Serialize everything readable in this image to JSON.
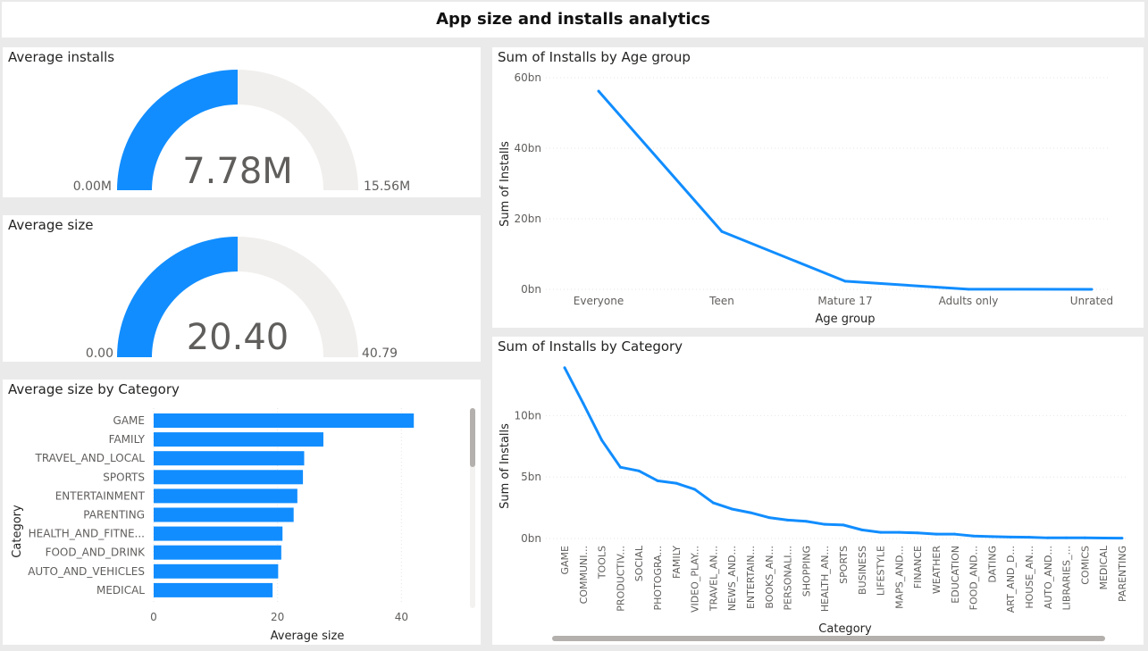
{
  "title": "App size and installs analytics",
  "colors": {
    "accent": "#118dff",
    "track": "#f1efed",
    "axis_text": "#605e5c",
    "title_text": "#252423"
  },
  "gauge_installs": {
    "title": "Average installs",
    "value": 7.78,
    "min": 0,
    "max": 15.56,
    "value_label": "7.78M",
    "min_label": "0.00M",
    "max_label": "15.56M"
  },
  "gauge_size": {
    "title": "Average size",
    "value": 20.4,
    "min": 0,
    "max": 40.79,
    "value_label": "20.40",
    "min_label": "0.00",
    "max_label": "40.79"
  },
  "chart_data": [
    {
      "type": "bar",
      "orientation": "horizontal",
      "title": "Average size by Category",
      "xlabel": "Average size",
      "ylabel": "Category",
      "xlim": [
        0,
        45
      ],
      "xticks": [
        0,
        20,
        40
      ],
      "categories": [
        "GAME",
        "FAMILY",
        "TRAVEL_AND_LOCAL",
        "SPORTS",
        "ENTERTAINMENT",
        "PARENTING",
        "HEALTH_AND_FITNE...",
        "FOOD_AND_DRINK",
        "AUTO_AND_VEHICLES",
        "MEDICAL"
      ],
      "values": [
        42.0,
        27.4,
        24.3,
        24.1,
        23.2,
        22.6,
        20.8,
        20.6,
        20.1,
        19.2
      ]
    },
    {
      "type": "line",
      "title": "Sum of Installs by Age group",
      "xlabel": "Age group",
      "ylabel": "Sum of Installs",
      "ylim": [
        0,
        60
      ],
      "yticks": [
        0,
        20,
        40,
        60
      ],
      "ytick_labels": [
        "0bn",
        "20bn",
        "40bn",
        "60bn"
      ],
      "categories": [
        "Everyone",
        "Teen",
        "Mature 17",
        "Adults only",
        "Unrated"
      ],
      "values": [
        56.2,
        16.4,
        2.3,
        0.03,
        0.0
      ]
    },
    {
      "type": "line",
      "title": "Sum of Installs by Category",
      "xlabel": "Category",
      "ylabel": "Sum of Installs",
      "ylim": [
        0,
        14
      ],
      "yticks": [
        0,
        5,
        10
      ],
      "ytick_labels": [
        "0bn",
        "5bn",
        "10bn"
      ],
      "categories": [
        "GAME",
        "COMMUNI...",
        "TOOLS",
        "PRODUCTIV...",
        "SOCIAL",
        "PHOTOGRA...",
        "FAMILY",
        "VIDEO_PLAY...",
        "TRAVEL_AN...",
        "NEWS_AND...",
        "ENTERTAIN...",
        "BOOKS_AN...",
        "PERSONALI...",
        "SHOPPING",
        "HEALTH_AN...",
        "SPORTS",
        "BUSINESS",
        "LIFESTYLE",
        "MAPS_AND...",
        "FINANCE",
        "WEATHER",
        "EDUCATION",
        "FOOD_AND...",
        "DATING",
        "ART_AND_D...",
        "HOUSE_AN...",
        "AUTO_AND...",
        "LIBRARIES_...",
        "COMICS",
        "MEDICAL",
        "PARENTING"
      ],
      "values": [
        13.9,
        11.0,
        8.0,
        5.8,
        5.5,
        4.7,
        4.5,
        4.0,
        2.9,
        2.4,
        2.1,
        1.7,
        1.5,
        1.4,
        1.15,
        1.1,
        0.7,
        0.5,
        0.5,
        0.45,
        0.35,
        0.35,
        0.2,
        0.15,
        0.12,
        0.1,
        0.05,
        0.05,
        0.05,
        0.04,
        0.03
      ]
    }
  ]
}
